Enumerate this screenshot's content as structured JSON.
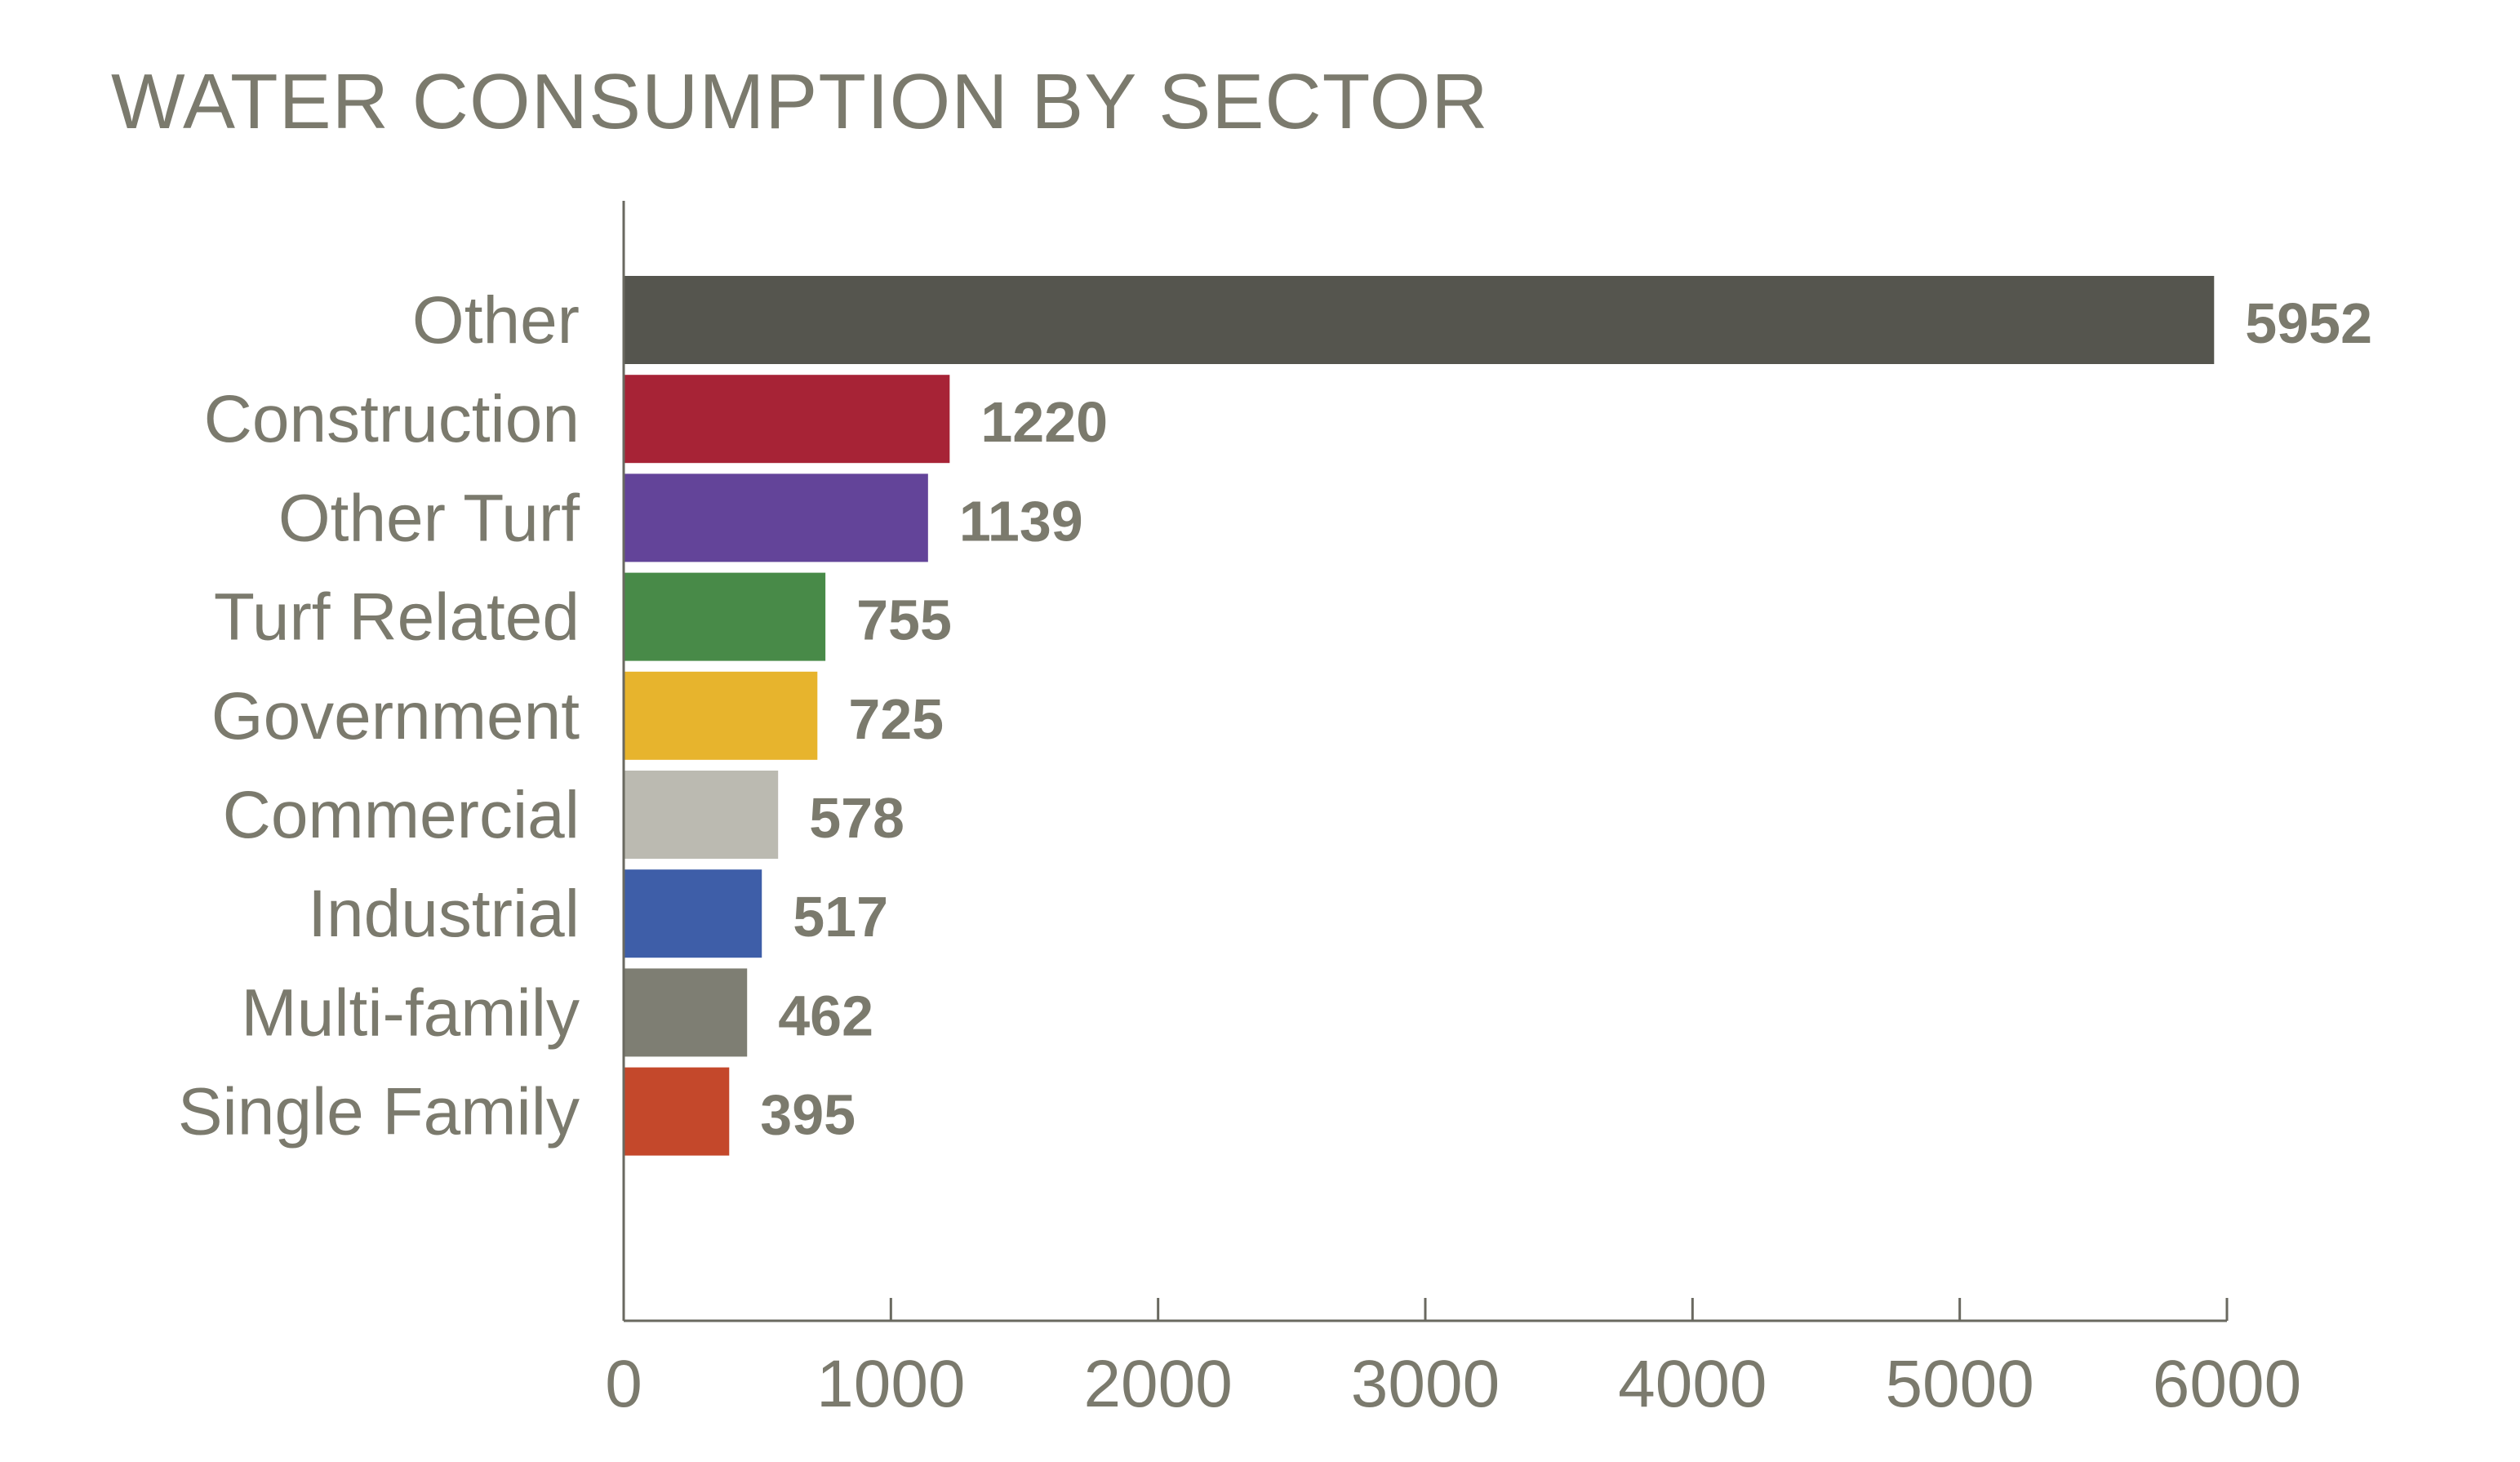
{
  "chart_data": {
    "type": "bar",
    "orientation": "horizontal",
    "title": "WATER CONSUMPTION BY SECTOR",
    "xlabel": "",
    "ylabel": "",
    "categories": [
      "Other",
      "Construction",
      "Other Turf",
      "Turf Related",
      "Government",
      "Commercial",
      "Industrial",
      "Multi-family",
      "Single Family"
    ],
    "values": [
      5952,
      1220,
      1139,
      755,
      725,
      578,
      517,
      462,
      395
    ],
    "colors": [
      "#55554e",
      "#a72336",
      "#634499",
      "#488a48",
      "#e7b42d",
      "#bbbab1",
      "#3e5ea8",
      "#7e7e73",
      "#c4482b"
    ],
    "xlim": [
      0,
      6000
    ],
    "xticks": [
      0,
      1000,
      2000,
      3000,
      4000,
      5000,
      6000
    ],
    "grid": false,
    "legend": "none",
    "text_color": "#7b7a6d"
  }
}
